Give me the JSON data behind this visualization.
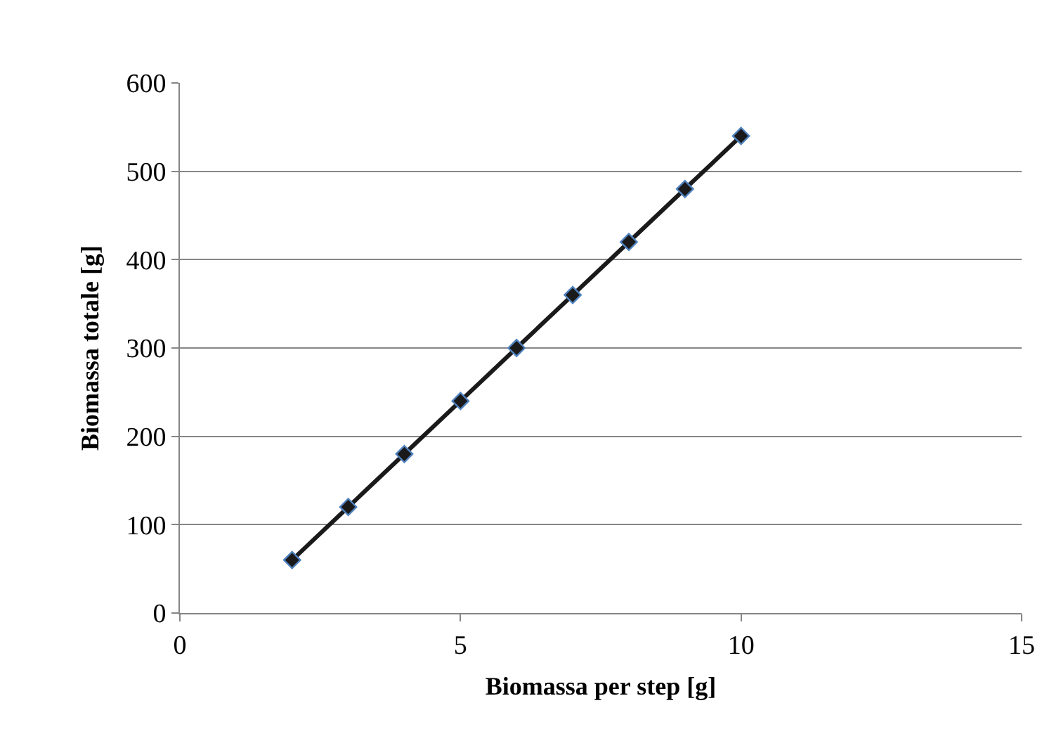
{
  "chart_data": {
    "type": "line",
    "xlabel": "Biomassa per step [g]",
    "ylabel": "Biomassa totale [g]",
    "x": [
      2,
      3,
      4,
      5,
      6,
      7,
      8,
      9,
      10
    ],
    "series": [
      {
        "color": "#1a1a1a",
        "values": [
          60,
          120,
          180,
          240,
          300,
          360,
          420,
          480,
          540
        ]
      }
    ],
    "xlim": [
      0,
      15
    ],
    "xticks": [
      0,
      5,
      10,
      15
    ],
    "ylim": [
      0,
      600
    ],
    "yticks": [
      0,
      100,
      200,
      300,
      400,
      500,
      600
    ],
    "grid": "y",
    "marker": "diamond",
    "line_style": "solid"
  }
}
